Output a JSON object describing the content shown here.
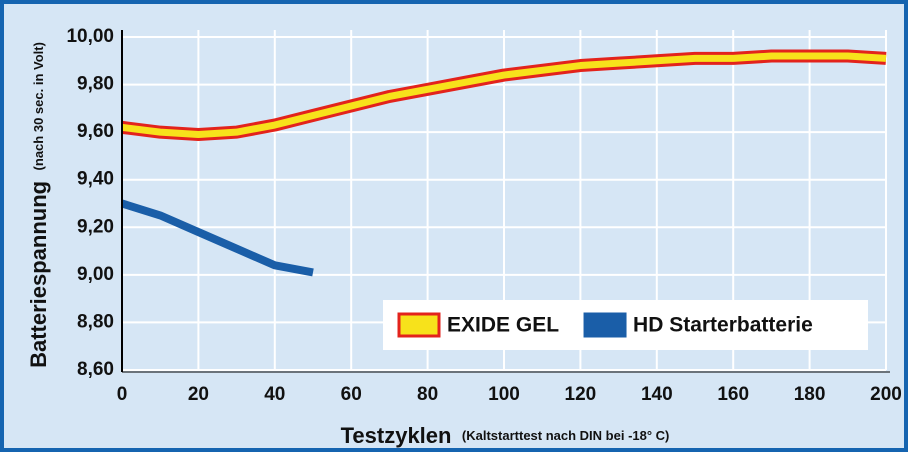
{
  "chart_data": {
    "type": "line",
    "ylabel": "Batteriespannung",
    "ylabel_note": "(nach 30 sec. in Volt)",
    "xlabel": "Testzyklen",
    "xlabel_note": "(Kaltstarttest nach DIN bei -18° C)",
    "xlim": [
      0,
      200
    ],
    "xticks": [
      0,
      20,
      40,
      60,
      80,
      100,
      120,
      140,
      160,
      180,
      200
    ],
    "ylim": [
      8.6,
      10.0
    ],
    "yticks": [
      {
        "value": 8.6,
        "label": "8,60"
      },
      {
        "value": 8.8,
        "label": "8,80"
      },
      {
        "value": 9.0,
        "label": "9,00"
      },
      {
        "value": 9.2,
        "label": "9,20"
      },
      {
        "value": 9.4,
        "label": "9,40"
      },
      {
        "value": 9.6,
        "label": "9,60"
      },
      {
        "value": 9.8,
        "label": "9,80"
      },
      {
        "value": 10.0,
        "label": "10,00"
      }
    ],
    "grid": true,
    "legend": "bottom-right",
    "series": [
      {
        "name": "EXIDE GEL",
        "color": "#f7e21b",
        "outline": "#e3231c",
        "x": [
          0,
          10,
          20,
          30,
          40,
          50,
          60,
          70,
          80,
          90,
          100,
          110,
          120,
          130,
          140,
          150,
          160,
          170,
          180,
          190,
          200
        ],
        "values": [
          9.62,
          9.6,
          9.59,
          9.6,
          9.63,
          9.67,
          9.71,
          9.75,
          9.78,
          9.81,
          9.84,
          9.86,
          9.88,
          9.89,
          9.9,
          9.91,
          9.91,
          9.92,
          9.92,
          9.92,
          9.91
        ]
      },
      {
        "name": "HD Starterbatterie",
        "color": "#1a5ea8",
        "x": [
          0,
          10,
          20,
          30,
          40,
          50
        ],
        "values": [
          9.3,
          9.25,
          9.18,
          9.11,
          9.04,
          9.01
        ]
      }
    ]
  }
}
